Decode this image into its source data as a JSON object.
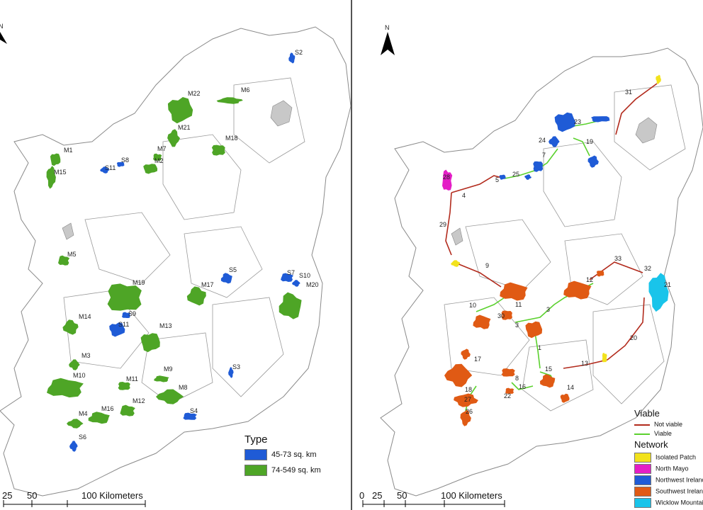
{
  "left_map": {
    "north_label": "N",
    "legend_title": "Type",
    "legend": [
      {
        "label": "45-73 sq. km",
        "color": "#1f5bd6"
      },
      {
        "label": "74-549 sq. km",
        "color": "#4ea526"
      }
    ],
    "scale": [
      "25",
      "50",
      "100 Kilometers"
    ],
    "patches": [
      "M1",
      "M15",
      "S8",
      "S11",
      "M22",
      "M6",
      "M21",
      "M7",
      "M2",
      "M18",
      "S2",
      "M5",
      "M19",
      "M14",
      "S9",
      "S11",
      "M17",
      "S5",
      "M13",
      "S7",
      "S10",
      "M20",
      "M3",
      "M10",
      "M11",
      "M9",
      "M8",
      "M4",
      "M16",
      "M12",
      "S3",
      "S4",
      "S6"
    ]
  },
  "right_map": {
    "north_label": "N",
    "legend": {
      "viable_title": "Viable",
      "viable_items": [
        {
          "label": "Not viable",
          "color": "#b22a1c"
        },
        {
          "label": "Viable",
          "color": "#5bd12e"
        }
      ],
      "network_title": "Network",
      "network_items": [
        {
          "label": "Isolated Patch",
          "color": "#f2e21c"
        },
        {
          "label": "North Mayo",
          "color": "#e41ec6"
        },
        {
          "label": "Northwest Ireland",
          "color": "#1f5bd6"
        },
        {
          "label": "Southwest Ireland",
          "color": "#e05a14"
        },
        {
          "label": "Wicklow Mountains",
          "color": "#19c4ea"
        }
      ]
    },
    "scale": [
      "0",
      "25",
      "50",
      "100 Kilometers"
    ],
    "node_labels": [
      "31",
      "23",
      "24",
      "19",
      "7",
      "5",
      "25",
      "28",
      "4",
      "29",
      "9",
      "33",
      "32",
      "12",
      "21",
      "10",
      "30",
      "11",
      "3",
      "3",
      "1",
      "20",
      "17",
      "8",
      "15",
      "13",
      "18",
      "16",
      "22",
      "14",
      "27",
      "26"
    ]
  },
  "colors": {
    "border": "#8a8a8a",
    "lake": "#c8c8c8",
    "blue": "#1f5bd6",
    "green": "#4ea526",
    "orange": "#e05a14",
    "magenta": "#e41ec6",
    "yellow": "#f2e21c",
    "cyan": "#19c4ea",
    "red": "#b22a1c",
    "lime": "#5bd12e"
  }
}
